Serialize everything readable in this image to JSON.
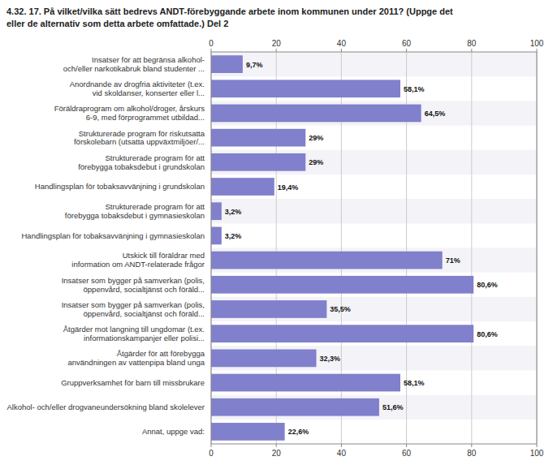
{
  "chart_data": {
    "type": "bar",
    "orientation": "horizontal",
    "title": "4.32. 17. På vilket/vilka sätt bedrevs ANDT-förebyggande arbete inom kommunen under 2011? (Uppge det",
    "subtitle": "eller de alternativ som detta arbete omfattade.) Del 2",
    "categories": [
      "Insatser för att begränsa alkohol-\noch/eller narkotikabruk bland studenter ...",
      "Anordnande av drogfria aktiviteter (t.ex.\nvid skoldanser, konserter eller l...",
      "Föräldraprogram om alkohol/droger, årskurs\n6-9, med förprogrammet utbildad...",
      "Strukturerade program för riskutsatta\nförskolebarn (utsatta uppväxtmiljöer/...",
      "Strukturerade program för att\nförebygga tobaksdebut i grundskolan",
      "Handlingsplan för tobaksavvänjning i grundskolan",
      "Strukturerade program för att\nförebygga tobaksdebut i gymnasieskolan",
      "Handlingsplan för tobaksavvänjning i gymnasieskolan",
      "Utskick till föräldrar med\ninformation om ANDT-relaterade frågor",
      "Insatser som bygger på samverkan (polis,\nöppenvård, socialtjänst och föräld...",
      "Insatser som bygger på samverkan (polis,\nöppenvård, socialtjänst och föräld...",
      "Åtgärder mot langning till ungdomar (t.ex.\ninformationskampanjer eller polisi...",
      "Åtgärder för att förebygga\nanvändningen av vattenpipa bland unga",
      "Gruppverksamhet för barn till missbrukare",
      "Alkohol- och/eller drogvaneundersökning bland skolelever",
      "Annat, uppge vad:"
    ],
    "values": [
      9.7,
      58.1,
      64.5,
      29.0,
      29.0,
      19.4,
      3.2,
      3.2,
      71.0,
      80.6,
      35.5,
      80.6,
      32.3,
      58.1,
      51.6,
      22.6
    ],
    "value_labels": [
      "9,7%",
      "58,1%",
      "64,5%",
      "29%",
      "29%",
      "19,4%",
      "3,2%",
      "3,2%",
      "71%",
      "80,6%",
      "35,5%",
      "80,6%",
      "32,3%",
      "58,1%",
      "51,6%",
      "22,6%"
    ],
    "color": "#8080cc",
    "xlim": [
      0,
      100
    ],
    "xticks": [
      0,
      20,
      40,
      60,
      80,
      100
    ],
    "grid": true,
    "data_labels": true
  }
}
